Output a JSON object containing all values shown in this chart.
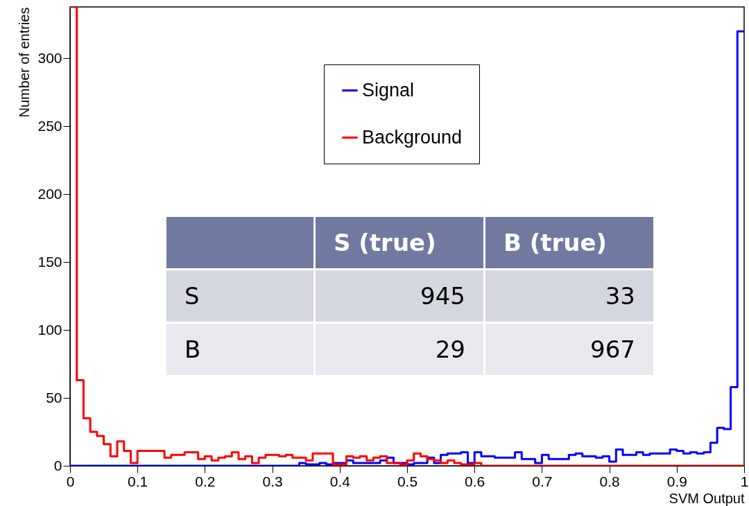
{
  "chart_data": [
    {
      "type": "histogram",
      "xlabel": "SVM Output",
      "ylabel": "Number of entries",
      "bins": [
        0,
        0.01,
        0.02,
        0.03,
        0.04,
        0.05,
        0.06,
        0.07,
        0.08,
        0.09,
        0.1,
        0.11,
        0.12,
        0.13,
        0.14,
        0.15,
        0.16,
        0.17,
        0.18,
        0.19,
        0.2,
        0.21,
        0.22,
        0.23,
        0.24,
        0.25,
        0.26,
        0.27,
        0.28,
        0.29,
        0.3,
        0.31,
        0.32,
        0.33,
        0.34,
        0.35,
        0.36,
        0.37,
        0.38,
        0.39,
        0.4,
        0.41,
        0.42,
        0.43,
        0.44,
        0.45,
        0.46,
        0.47,
        0.48,
        0.49,
        0.5,
        0.51,
        0.52,
        0.53,
        0.54,
        0.55,
        0.56,
        0.57,
        0.58,
        0.59,
        0.6,
        0.61,
        0.62,
        0.63,
        0.64,
        0.65,
        0.66,
        0.67,
        0.68,
        0.69,
        0.7,
        0.71,
        0.72,
        0.73,
        0.74,
        0.75,
        0.76,
        0.77,
        0.78,
        0.79,
        0.8,
        0.81,
        0.82,
        0.83,
        0.84,
        0.85,
        0.86,
        0.87,
        0.88,
        0.89,
        0.9,
        0.91,
        0.92,
        0.93,
        0.94,
        0.95,
        0.96,
        0.97,
        0.98,
        0.99,
        1
      ],
      "series": [
        {
          "name": "Signal",
          "color": "#0000ff",
          "values": [
            0,
            0,
            0,
            0,
            0,
            0,
            0,
            0,
            0,
            0,
            0,
            0,
            0,
            0,
            0,
            0,
            0,
            0,
            0,
            0,
            0,
            0,
            0,
            0,
            0,
            0,
            0,
            0,
            0,
            0,
            0,
            0,
            0,
            0,
            2,
            1,
            1,
            2,
            1,
            2,
            2,
            4,
            2,
            2,
            2,
            2,
            4,
            6,
            2,
            2,
            1,
            2,
            2,
            6,
            2,
            8,
            9,
            9,
            10,
            2,
            10,
            7,
            7,
            6,
            6,
            6,
            10,
            5,
            5,
            2,
            8,
            5,
            5,
            5,
            8,
            9,
            7,
            7,
            6,
            7,
            3,
            12,
            8,
            8,
            10,
            8,
            9,
            9,
            9,
            12,
            11,
            9,
            10,
            9,
            10,
            17,
            28,
            27,
            58,
            320
          ]
        },
        {
          "name": "Background",
          "color": "#ff0000",
          "values": [
            338,
            63,
            35,
            25,
            22,
            16,
            7,
            18,
            11,
            2,
            11,
            11,
            11,
            11,
            6,
            8,
            8,
            10,
            10,
            5,
            7,
            4,
            6,
            7,
            10,
            5,
            7,
            2,
            6,
            8,
            8,
            7,
            8,
            6,
            6,
            4,
            9,
            9,
            9,
            1,
            1,
            7,
            6,
            7,
            4,
            6,
            7,
            2,
            2,
            1,
            4,
            9,
            7,
            5,
            4,
            2,
            4,
            2,
            1,
            1,
            2,
            0,
            0,
            0,
            0,
            0,
            0,
            0,
            0,
            0,
            0,
            0,
            0,
            0,
            0,
            0,
            0,
            0,
            0,
            0,
            0,
            0,
            0,
            0,
            0,
            0,
            0,
            0,
            0,
            0,
            0,
            0,
            0,
            0,
            0,
            0,
            0,
            0,
            0,
            0
          ]
        }
      ],
      "xlim": [
        0,
        1
      ],
      "ylim": [
        0,
        338
      ],
      "xticks": [
        0,
        0.1,
        0.2,
        0.3,
        0.4,
        0.5,
        0.6,
        0.7,
        0.8,
        0.9,
        1
      ],
      "yticks": [
        0,
        50,
        100,
        150,
        200,
        250,
        300
      ],
      "legend": "top"
    },
    {
      "type": "other",
      "categories": [
        "S (true)",
        "B (true)"
      ],
      "y_categories": [
        "S",
        "B"
      ],
      "cell_labels": [
        [
          "945",
          "33"
        ],
        [
          "29",
          "967"
        ]
      ]
    }
  ]
}
